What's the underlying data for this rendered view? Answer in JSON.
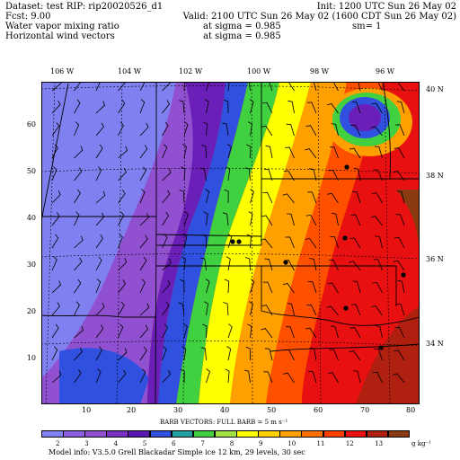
{
  "header": {
    "dataset_line": "Dataset: test   RIP: rip20020526_d1",
    "init_line": "Init: 1200 UTC Sun 26 May 02",
    "fcst_line": "Fcst:     9.00",
    "valid_line": "Valid: 2100 UTC Sun 26 May 02 (1600 CDT Sun 26 May 02)",
    "field1_name": "Water vapor mixing ratio",
    "field1_level": "at sigma = 0.985",
    "field1_extra": "sm= 1",
    "field2_name": "Horizontal wind vectors",
    "field2_level": "at sigma = 0.985"
  },
  "map": {
    "lon_labels": [
      "106 W",
      "104 W",
      "102 W",
      "100 W",
      "98 W",
      "96 W"
    ],
    "lat_labels": [
      "40 N",
      "38 N",
      "36 N",
      "34 N"
    ],
    "grid_x_labels": [
      "10",
      "20",
      "30",
      "40",
      "50",
      "60",
      "70",
      "80"
    ],
    "grid_y_labels": [
      "10",
      "20",
      "30",
      "40",
      "50",
      "60"
    ],
    "grid_x_range": [
      1,
      82
    ],
    "grid_y_range": [
      1,
      70
    ]
  },
  "colors": {
    "very_dry": "#8080f0",
    "dry": "#9050d0",
    "purple": "#6a20b8",
    "blue": "#3050e0",
    "teal": "#20a0a0",
    "green": "#40d040",
    "light_green": "#a0e040",
    "yellow": "#ffff00",
    "orange": "#ffa000",
    "red_orange": "#ff5000",
    "red": "#e81010",
    "dark_red": "#b02010",
    "brown": "#8a3a10"
  },
  "legend": {
    "barb_note": "BARB VECTORS:  FULL BARB = 5 m s⁻¹",
    "unit": "g kg⁻¹",
    "labels": [
      "2",
      "3",
      "4",
      "5",
      "6",
      "7",
      "8",
      "9",
      "10",
      "11",
      "12",
      "13"
    ],
    "swatches": [
      "#8080f0",
      "#8a60e0",
      "#9050d0",
      "#7a30c0",
      "#5a18b0",
      "#3050e0",
      "#20a0a0",
      "#40d040",
      "#a0e040",
      "#ffff00",
      "#ffd000",
      "#ffa000",
      "#ff7000",
      "#ff4000",
      "#e81010",
      "#b02010",
      "#8a3a10"
    ]
  },
  "footer": {
    "model_info": "Model info: V3.5.0   Grell     Blackadar   Simple ice     12 km,  29 levels,   30 sec"
  }
}
